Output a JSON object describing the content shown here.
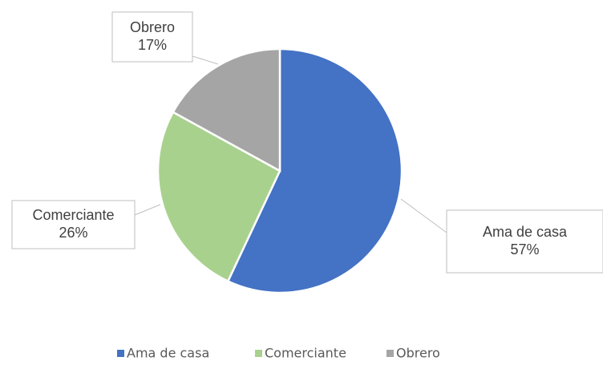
{
  "chart_data": {
    "type": "pie",
    "categories": [
      "Ama de casa",
      "Comerciante",
      "Obrero"
    ],
    "values": [
      57,
      26,
      17
    ],
    "value_labels": [
      "57%",
      "26%",
      "17%"
    ],
    "colors": [
      "#4472c4",
      "#a9d18e",
      "#a5a5a5"
    ],
    "legend": "bottom"
  }
}
